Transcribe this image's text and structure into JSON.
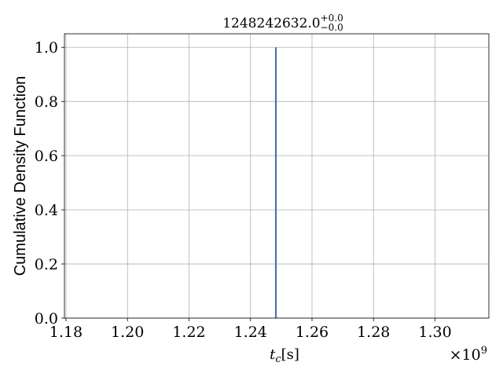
{
  "chart_data": {
    "type": "line",
    "title": {
      "value": "1248242632.0",
      "sup": "+0.0",
      "sub": "−0.0"
    },
    "xlabel": {
      "main": "t",
      "sub": "c",
      "unit": "[s]"
    },
    "ylabel": "Cumulative Density Function",
    "x_offset_label": {
      "prefix": "×10",
      "exp": "9"
    },
    "xlim": [
      1.1795,
      1.3175
    ],
    "ylim": [
      0.0,
      1.05
    ],
    "x_ticks": [
      1.18,
      1.2,
      1.22,
      1.24,
      1.26,
      1.28,
      1.3
    ],
    "x_tick_labels": [
      "1.18",
      "1.20",
      "1.22",
      "1.24",
      "1.26",
      "1.28",
      "1.30"
    ],
    "y_ticks": [
      0.0,
      0.2,
      0.4,
      0.6,
      0.8,
      1.0
    ],
    "y_tick_labels": [
      "0.0",
      "0.2",
      "0.4",
      "0.6",
      "0.8",
      "1.0"
    ],
    "grid": true,
    "series": [
      {
        "x": [
          1.248242632,
          1.248242632
        ],
        "y": [
          0.0,
          1.0
        ],
        "color": "#4c72b0"
      }
    ]
  }
}
